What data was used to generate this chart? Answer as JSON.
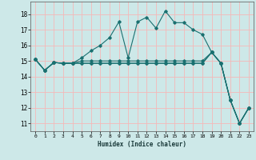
{
  "xlabel": "Humidex (Indice chaleur)",
  "xlim": [
    -0.5,
    23.5
  ],
  "ylim": [
    10.5,
    18.8
  ],
  "xticks": [
    0,
    1,
    2,
    3,
    4,
    5,
    6,
    7,
    8,
    9,
    10,
    11,
    12,
    13,
    14,
    15,
    16,
    17,
    18,
    19,
    20,
    21,
    22,
    23
  ],
  "yticks": [
    11,
    12,
    13,
    14,
    15,
    16,
    17,
    18
  ],
  "background_color": "#cde8e8",
  "grid_color": "#f5b8b8",
  "line_color": "#1a7070",
  "lines": [
    {
      "x": [
        0,
        1,
        2,
        3,
        4,
        5,
        6,
        7,
        8,
        9,
        10,
        11,
        12,
        13,
        14,
        15,
        16,
        17,
        18,
        19,
        20,
        21,
        22,
        23
      ],
      "y": [
        15.1,
        14.4,
        14.9,
        14.85,
        14.85,
        15.2,
        15.65,
        16.0,
        16.5,
        17.5,
        15.2,
        17.5,
        17.8,
        17.1,
        18.2,
        17.45,
        17.45,
        17.0,
        16.7,
        15.55,
        14.85,
        12.5,
        11.0,
        12.0
      ]
    },
    {
      "x": [
        0,
        1,
        2,
        3,
        4,
        5,
        6,
        7,
        8,
        9,
        10,
        11,
        12,
        13,
        14,
        15,
        16,
        17,
        18,
        19,
        20,
        21,
        22,
        23
      ],
      "y": [
        15.1,
        14.4,
        14.9,
        14.85,
        14.85,
        15.0,
        15.0,
        15.0,
        15.0,
        15.0,
        15.0,
        15.0,
        15.0,
        15.0,
        15.0,
        15.0,
        15.0,
        15.0,
        15.0,
        15.55,
        14.85,
        12.5,
        11.0,
        12.0
      ]
    },
    {
      "x": [
        0,
        1,
        2,
        3,
        4,
        5,
        6,
        7,
        8,
        9,
        10,
        11,
        12,
        13,
        14,
        15,
        16,
        17,
        18,
        19,
        20,
        21,
        22,
        23
      ],
      "y": [
        15.1,
        14.4,
        14.9,
        14.85,
        14.85,
        14.85,
        14.85,
        14.85,
        14.85,
        14.85,
        14.85,
        14.85,
        14.85,
        14.85,
        14.85,
        14.85,
        14.85,
        14.85,
        14.85,
        15.55,
        14.85,
        12.5,
        11.0,
        12.0
      ]
    },
    {
      "x": [
        0,
        1,
        2,
        3,
        4,
        5,
        6,
        7,
        8,
        9,
        10,
        11,
        12,
        13,
        14,
        15,
        16,
        17,
        18,
        19,
        20,
        21,
        22,
        23
      ],
      "y": [
        15.1,
        14.4,
        14.9,
        14.85,
        14.85,
        14.85,
        14.85,
        14.85,
        14.85,
        14.85,
        14.85,
        14.85,
        14.85,
        14.85,
        14.85,
        14.85,
        14.85,
        14.85,
        14.85,
        15.55,
        14.85,
        12.5,
        11.0,
        12.0
      ]
    }
  ]
}
